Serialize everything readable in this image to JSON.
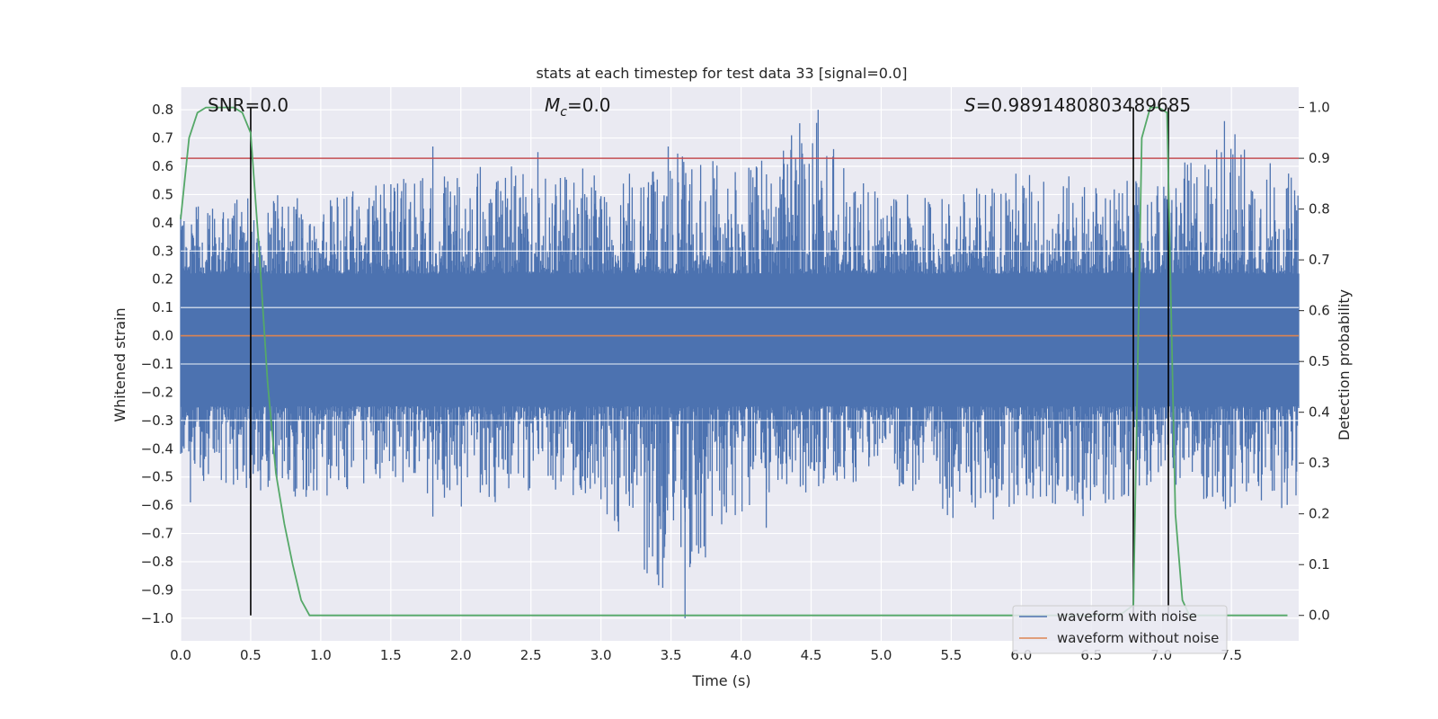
{
  "chart_data": {
    "type": "line",
    "title": "stats at each timestep for test data 33 [signal=0.0]",
    "xlabel": "Time (s)",
    "ylabel": "Whitened strain",
    "y2label": "Detection probability",
    "xlim": [
      0.0,
      7.98
    ],
    "ylim": [
      -1.08,
      0.88
    ],
    "y2lim": [
      -0.05,
      1.04
    ],
    "xticks": [
      "0.0",
      "0.5",
      "1.0",
      "1.5",
      "2.0",
      "2.5",
      "3.0",
      "3.5",
      "4.0",
      "4.5",
      "5.0",
      "5.5",
      "6.0",
      "6.5",
      "7.0",
      "7.5"
    ],
    "yticks": [
      "0.8",
      "0.7",
      "0.6",
      "0.5",
      "0.4",
      "0.3",
      "0.2",
      "0.1",
      "0.0",
      "-0.1",
      "-0.2",
      "-0.3",
      "-0.4",
      "-0.5",
      "-0.6",
      "-0.7",
      "-0.8",
      "-0.9",
      "-1.0"
    ],
    "y2ticks": [
      "1.0",
      "0.9",
      "0.8",
      "0.7",
      "0.6",
      "0.5",
      "0.4",
      "0.3",
      "0.2",
      "0.1",
      "0.0"
    ],
    "grid": true,
    "legend_position": "lower-right",
    "annotations": {
      "snr_label": "SNR=0.0",
      "mc_prefix": "M",
      "mc_sub": "c",
      "mc_value": "=0.0",
      "s_prefix": "S",
      "s_value": "=0.9891480803489685"
    },
    "threshold_line": {
      "y2": 0.9,
      "color": "#c44e52"
    },
    "vertical_markers": [
      0.5,
      6.8,
      7.05
    ],
    "series": [
      {
        "name": "waveform with noise",
        "color": "#4c72b0",
        "envelope_x": [
          0.0,
          0.5,
          1.0,
          1.5,
          2.0,
          2.5,
          3.0,
          3.5,
          4.0,
          4.5,
          5.0,
          5.5,
          6.0,
          6.5,
          7.0,
          7.5,
          7.98
        ],
        "envelope_upper": [
          0.45,
          0.5,
          0.5,
          0.55,
          0.6,
          0.6,
          0.6,
          0.65,
          0.6,
          0.8,
          0.5,
          0.5,
          0.6,
          0.55,
          0.55,
          0.75,
          0.55
        ],
        "envelope_lower": [
          -0.5,
          -0.55,
          -0.6,
          -0.5,
          -0.65,
          -0.55,
          -0.6,
          -1.0,
          -0.65,
          -0.55,
          -0.5,
          -0.65,
          -0.6,
          -0.65,
          -0.5,
          -0.65,
          -0.6
        ],
        "peaks": [
          {
            "x": 1.8,
            "y": 0.67
          },
          {
            "x": 2.55,
            "y": 0.65
          },
          {
            "x": 3.48,
            "y": 0.67
          },
          {
            "x": 4.55,
            "y": 0.8
          },
          {
            "x": 7.45,
            "y": 0.76
          },
          {
            "x": 3.6,
            "y": -1.0
          },
          {
            "x": 4.18,
            "y": -0.68
          },
          {
            "x": 0.07,
            "y": -0.59
          },
          {
            "x": 1.8,
            "y": -0.64
          },
          {
            "x": 5.8,
            "y": -0.65
          }
        ]
      },
      {
        "name": "waveform without noise",
        "color": "#dd8452",
        "x": [
          0.0,
          7.98
        ],
        "y": [
          0.0,
          0.0
        ]
      },
      {
        "name": "detection probability",
        "color": "#55a868",
        "axis": "right",
        "x": [
          0.0,
          0.06,
          0.12,
          0.18,
          0.25,
          0.32,
          0.38,
          0.44,
          0.5,
          0.56,
          0.62,
          0.68,
          0.74,
          0.8,
          0.86,
          0.92,
          1.0,
          6.7,
          6.8,
          6.86,
          6.92,
          6.98,
          7.04,
          7.1,
          7.15,
          7.2,
          7.9
        ],
        "y": [
          0.78,
          0.94,
          0.99,
          1.0,
          1.0,
          1.0,
          1.0,
          0.99,
          0.95,
          0.72,
          0.46,
          0.28,
          0.18,
          0.1,
          0.03,
          0.0,
          0.0,
          0.0,
          0.02,
          0.94,
          1.0,
          1.0,
          0.99,
          0.2,
          0.03,
          0.0,
          0.0
        ]
      }
    ]
  }
}
